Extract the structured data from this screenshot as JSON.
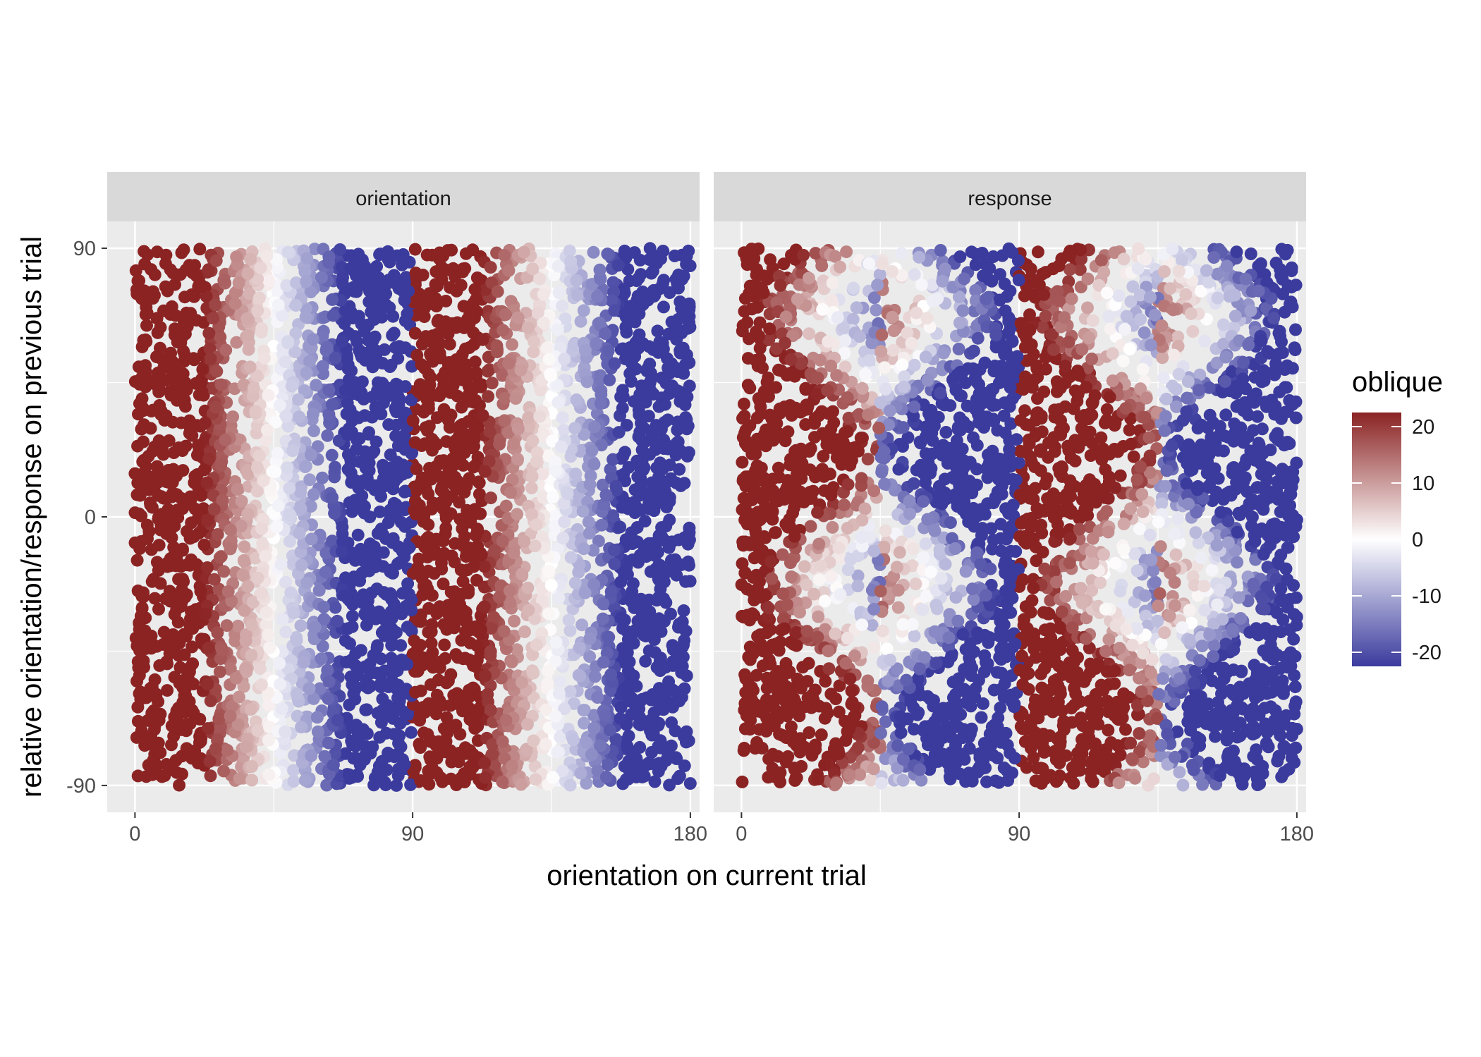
{
  "chart_data": {
    "type": "scatter",
    "facets": [
      {
        "label": "orientation",
        "mode": "orientation"
      },
      {
        "label": "response",
        "mode": "response"
      }
    ],
    "xlabel": "orientation on current trial",
    "ylabel": "relative orientation/response on previous trial",
    "xlim": [
      -9,
      183
    ],
    "ylim": [
      -99,
      99
    ],
    "x_ticks": [
      0,
      90,
      180
    ],
    "x_tick_labels": [
      "0",
      "90",
      "180"
    ],
    "y_ticks": [
      -90,
      0,
      90
    ],
    "y_tick_labels": [
      "-90",
      "0",
      "90"
    ],
    "grid": true,
    "point_count_per_facet": 4000,
    "point_count_note": "points are jittered trials; color = oblique-bias value, clipped at +/-22.5",
    "legend": {
      "title": "oblique",
      "position": "right",
      "breaks": [
        20,
        10,
        0,
        -10,
        -20
      ],
      "break_labels": [
        "20",
        "10",
        "0",
        "-10",
        "-20"
      ],
      "range": [
        -22.5,
        22.5
      ]
    },
    "colors": {
      "low": "#3B3B9E",
      "mid": "#FFFFFF",
      "high": "#8B2323",
      "panel_bg": "#EBEBEB",
      "strip_bg": "#D9D9D9",
      "grid": "#FFFFFF"
    }
  }
}
